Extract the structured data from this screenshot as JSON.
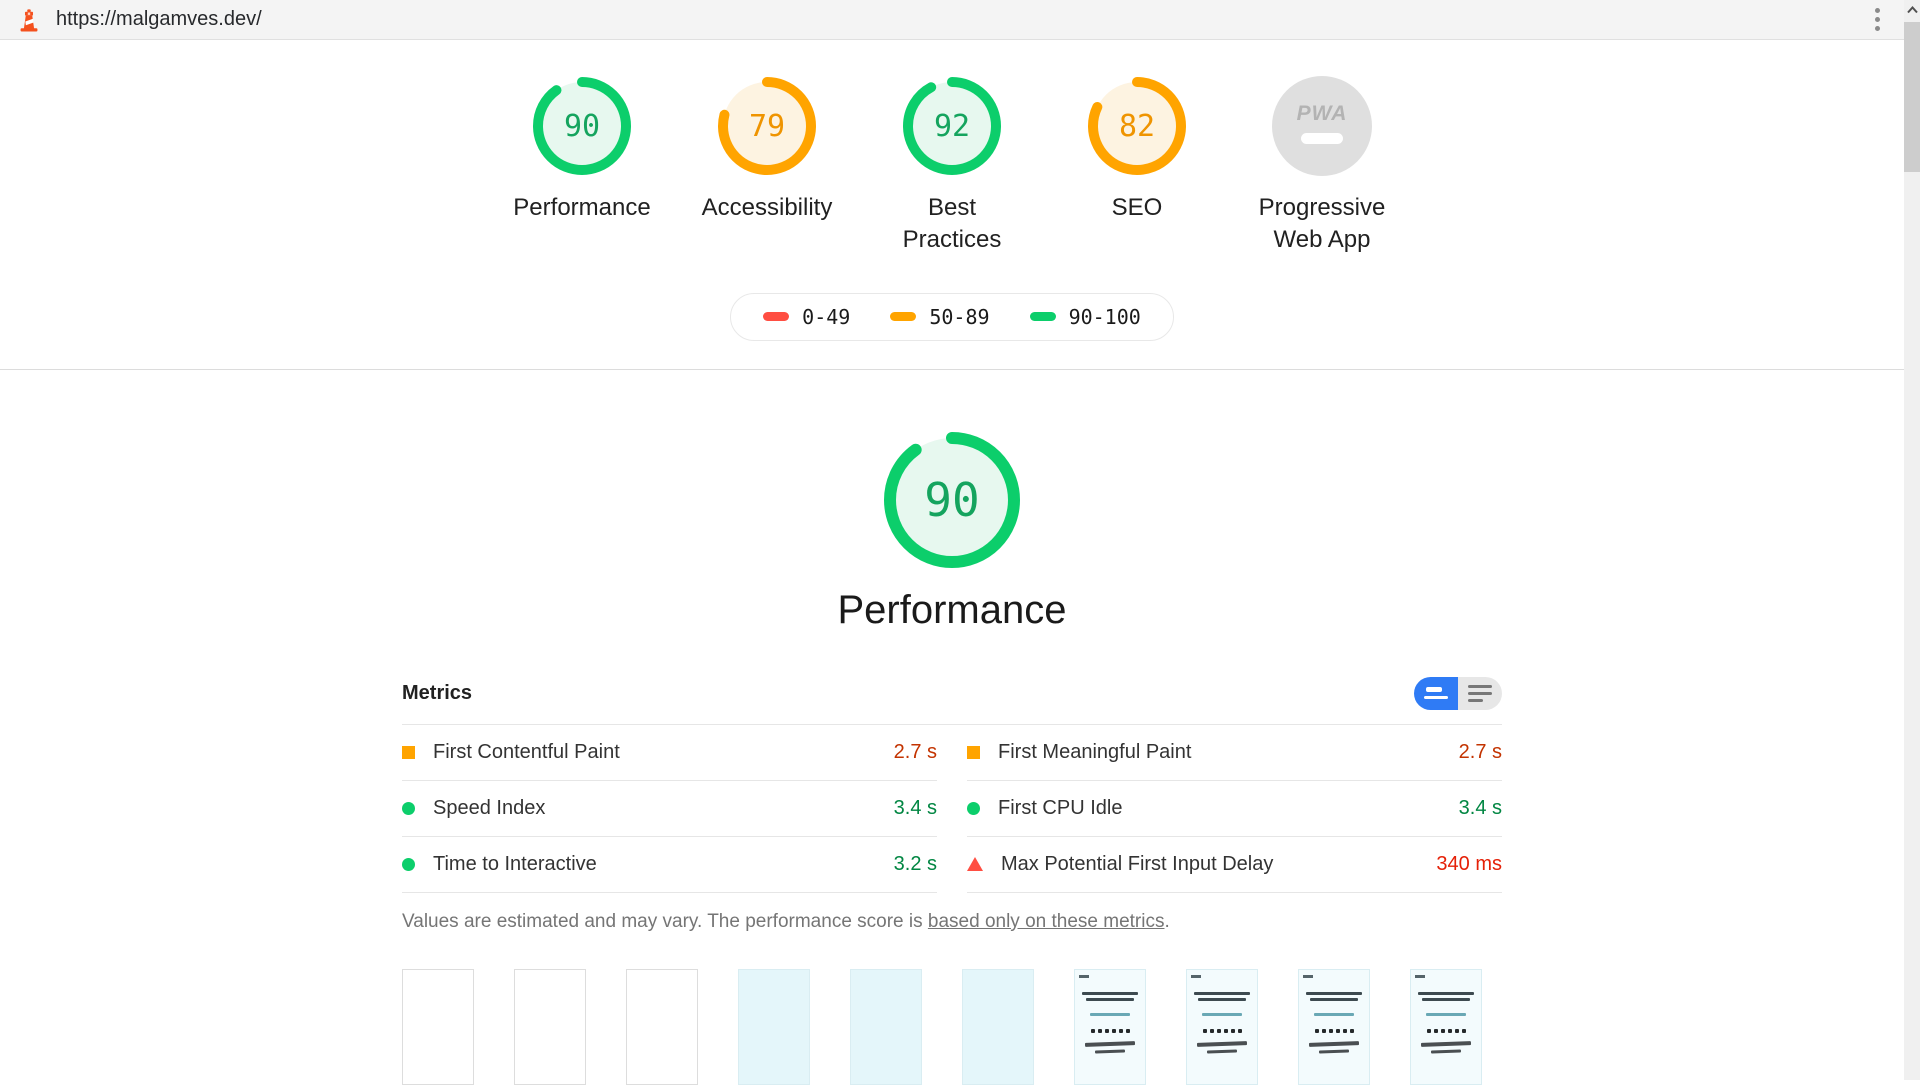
{
  "topbar": {
    "url": "https://malgamves.dev/"
  },
  "scores": [
    {
      "id": "performance",
      "label": "Performance",
      "score": 90,
      "level": "pass"
    },
    {
      "id": "accessibility",
      "label": "Accessibility",
      "score": 79,
      "level": "average"
    },
    {
      "id": "best-practices",
      "label": "Best Practices",
      "score": 92,
      "level": "pass"
    },
    {
      "id": "seo",
      "label": "SEO",
      "score": 82,
      "level": "average"
    },
    {
      "id": "pwa",
      "label": "Progressive Web App",
      "badge": "PWA"
    }
  ],
  "legend": [
    {
      "range": "0-49",
      "color": "#ff4e42"
    },
    {
      "range": "50-89",
      "color": "#ffa400"
    },
    {
      "range": "90-100",
      "color": "#0cce6b"
    }
  ],
  "performance_section": {
    "score": 90,
    "level": "pass",
    "title": "Performance"
  },
  "metrics": {
    "header": "Metrics",
    "columns": [
      [
        {
          "name": "First Contentful Paint",
          "value": "2.7 s",
          "status": "average"
        },
        {
          "name": "Speed Index",
          "value": "3.4 s",
          "status": "pass"
        },
        {
          "name": "Time to Interactive",
          "value": "3.2 s",
          "status": "pass"
        }
      ],
      [
        {
          "name": "First Meaningful Paint",
          "value": "2.7 s",
          "status": "average"
        },
        {
          "name": "First CPU Idle",
          "value": "3.4 s",
          "status": "pass"
        },
        {
          "name": "Max Potential First Input Delay",
          "value": "340 ms",
          "status": "fail"
        }
      ]
    ],
    "disclaimer_prefix": "Values are estimated and may vary. The performance score is ",
    "disclaimer_link": "based only on these metrics",
    "disclaimer_suffix": "."
  },
  "filmstrip": [
    {
      "state": "blank"
    },
    {
      "state": "blank"
    },
    {
      "state": "blank"
    },
    {
      "state": "tint"
    },
    {
      "state": "tint"
    },
    {
      "state": "tint"
    },
    {
      "state": "content"
    },
    {
      "state": "content"
    },
    {
      "state": "content"
    },
    {
      "state": "content"
    }
  ],
  "colors": {
    "pass": {
      "ring": "#0cce6b",
      "fill": "#e7f8ef",
      "text": "#15a45e",
      "value": "#018642"
    },
    "average": {
      "ring": "#ffa400",
      "fill": "#fdf3e1",
      "text": "#ef9400",
      "value": "#c33300"
    },
    "fail": {
      "ring": "#ff4e42",
      "fill": "#fdeeed",
      "text": "#e52007",
      "value": "#e52007"
    },
    "toggle_blue": "#2f7bf5"
  }
}
